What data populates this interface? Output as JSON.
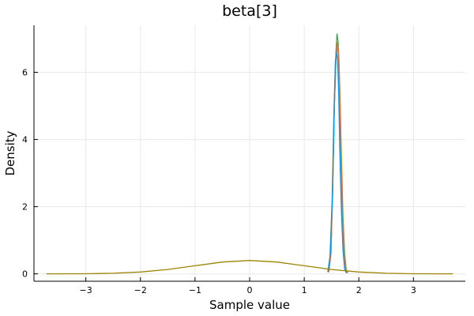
{
  "chart_data": {
    "type": "line",
    "title": "beta[3]",
    "xlabel": "Sample value",
    "ylabel": "Density",
    "xlim": [
      -3.95,
      3.95
    ],
    "ylim": [
      -0.22,
      7.4
    ],
    "xticks": [
      -3,
      -2,
      -1,
      0,
      1,
      2,
      3
    ],
    "yticks": [
      0,
      2,
      4,
      6
    ],
    "grid": true,
    "legend": "none",
    "series": [
      {
        "color": "#3da44d",
        "x": [
          1.44,
          1.48,
          1.52,
          1.55,
          1.58,
          1.6,
          1.62,
          1.64,
          1.66,
          1.69,
          1.72,
          1.76,
          1.78
        ],
        "y": [
          0.05,
          0.6,
          2.4,
          4.8,
          6.6,
          7.15,
          6.9,
          5.8,
          4.0,
          1.9,
          0.7,
          0.12,
          0.02
        ]
      },
      {
        "color": "#c271d2",
        "x": [
          1.45,
          1.49,
          1.52,
          1.55,
          1.58,
          1.61,
          1.63,
          1.65,
          1.67,
          1.7,
          1.73,
          1.76,
          1.79
        ],
        "y": [
          0.05,
          0.7,
          2.5,
          4.9,
          6.4,
          6.75,
          6.5,
          5.6,
          4.0,
          2.0,
          0.7,
          0.15,
          0.03
        ]
      },
      {
        "color": "#ac8d18",
        "x": [
          1.43,
          1.47,
          1.51,
          1.54,
          1.57,
          1.6,
          1.63,
          1.65,
          1.68,
          1.71,
          1.74,
          1.77,
          1.8
        ],
        "y": [
          0.05,
          0.5,
          2.2,
          4.6,
          6.3,
          6.9,
          6.6,
          5.5,
          3.6,
          1.7,
          0.6,
          0.12,
          0.03
        ]
      },
      {
        "color": "#e26f46",
        "x": [
          1.45,
          1.49,
          1.52,
          1.55,
          1.58,
          1.6,
          1.62,
          1.64,
          1.66,
          1.69,
          1.72,
          1.75,
          1.78
        ],
        "y": [
          0.05,
          0.6,
          2.6,
          4.9,
          6.3,
          6.8,
          6.7,
          5.8,
          4.2,
          2.0,
          0.8,
          0.15,
          0.03
        ]
      },
      {
        "color": "#009af9",
        "x": [
          1.44,
          1.48,
          1.52,
          1.55,
          1.57,
          1.59,
          1.61,
          1.63,
          1.65,
          1.68,
          1.71,
          1.74,
          1.77
        ],
        "y": [
          0.05,
          0.65,
          2.6,
          5.0,
          6.2,
          6.6,
          6.4,
          5.4,
          3.8,
          1.9,
          0.7,
          0.14,
          0.03
        ]
      },
      {
        "color": "#9b8500",
        "x": [
          -3.72,
          -3.5,
          -3.0,
          -2.5,
          -2.0,
          -1.5,
          -1.0,
          -0.5,
          0.0,
          0.5,
          1.0,
          1.5,
          2.0,
          2.5,
          3.0,
          3.5,
          3.72
        ],
        "y": [
          0.0004,
          0.0009,
          0.0044,
          0.0175,
          0.054,
          0.1295,
          0.242,
          0.352,
          0.399,
          0.352,
          0.242,
          0.1295,
          0.054,
          0.0175,
          0.0044,
          0.0009,
          0.0004
        ]
      }
    ]
  }
}
